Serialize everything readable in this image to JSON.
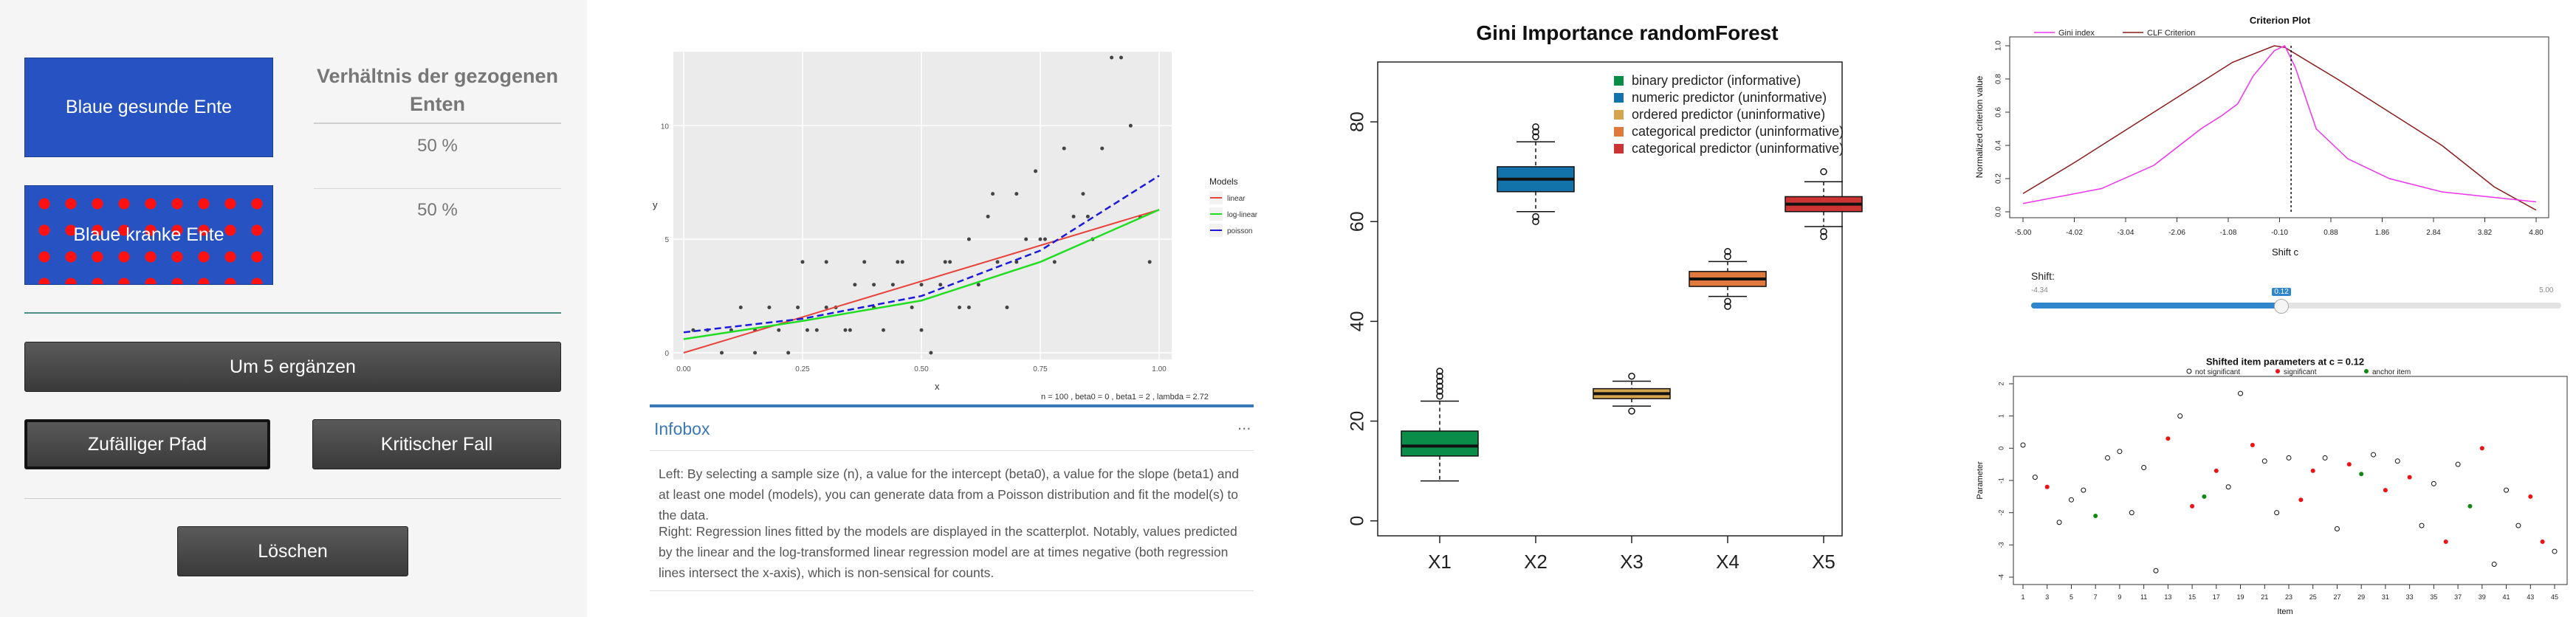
{
  "panel1": {
    "buttons": {
      "healthy": "Blaue gesunde Ente",
      "sick": "Blaue kranke Ente",
      "add5": "Um 5 ergänzen",
      "random_path": "Zufälliger Pfad",
      "critical_case": "Kritischer Fall",
      "delete": "Löschen"
    },
    "ratio_title": "Verhältnis der gezogenen Enten",
    "ratio_values": [
      "50 %",
      "50 %"
    ]
  },
  "panel2": {
    "chart_data": {
      "type": "scatter",
      "xlabel": "x",
      "ylabel": "y",
      "xlim": [
        0,
        1
      ],
      "ylim": [
        0,
        13
      ],
      "x_ticks": [
        "0.00",
        "0.25",
        "0.50",
        "0.75",
        "1.00"
      ],
      "y_ticks": [
        "0",
        "5",
        "10"
      ],
      "legend_title": "Models",
      "legend": [
        {
          "name": "linear",
          "color": "#e8423a"
        },
        {
          "name": "log-linear",
          "color": "#22dd22"
        },
        {
          "name": "poisson",
          "color": "#1a1adb"
        }
      ],
      "points": [
        [
          0.02,
          1
        ],
        [
          0.05,
          1
        ],
        [
          0.08,
          0
        ],
        [
          0.1,
          1
        ],
        [
          0.12,
          2
        ],
        [
          0.15,
          0
        ],
        [
          0.18,
          2
        ],
        [
          0.2,
          1
        ],
        [
          0.22,
          0
        ],
        [
          0.24,
          2
        ],
        [
          0.26,
          1
        ],
        [
          0.28,
          1
        ],
        [
          0.3,
          4
        ],
        [
          0.32,
          2
        ],
        [
          0.34,
          1
        ],
        [
          0.36,
          3
        ],
        [
          0.38,
          4
        ],
        [
          0.4,
          2
        ],
        [
          0.42,
          1
        ],
        [
          0.44,
          3
        ],
        [
          0.46,
          4
        ],
        [
          0.48,
          2
        ],
        [
          0.5,
          1
        ],
        [
          0.52,
          0
        ],
        [
          0.54,
          3
        ],
        [
          0.56,
          4
        ],
        [
          0.58,
          2
        ],
        [
          0.6,
          5
        ],
        [
          0.62,
          3
        ],
        [
          0.64,
          6
        ],
        [
          0.66,
          4
        ],
        [
          0.68,
          2
        ],
        [
          0.7,
          7
        ],
        [
          0.72,
          5
        ],
        [
          0.74,
          8
        ],
        [
          0.76,
          5
        ],
        [
          0.78,
          4
        ],
        [
          0.8,
          9
        ],
        [
          0.82,
          6
        ],
        [
          0.84,
          7
        ],
        [
          0.86,
          5
        ],
        [
          0.88,
          9
        ],
        [
          0.9,
          13
        ],
        [
          0.92,
          13
        ],
        [
          0.94,
          10
        ],
        [
          0.96,
          6
        ],
        [
          0.98,
          4
        ],
        [
          0.45,
          4
        ],
        [
          0.35,
          1
        ],
        [
          0.65,
          7
        ],
        [
          0.55,
          4
        ],
        [
          0.25,
          4
        ],
        [
          0.15,
          1
        ],
        [
          0.75,
          5
        ],
        [
          0.85,
          6
        ],
        [
          0.6,
          2
        ],
        [
          0.7,
          4
        ],
        [
          0.5,
          3
        ],
        [
          0.4,
          3
        ],
        [
          0.3,
          2
        ]
      ],
      "lines": {
        "linear": [
          [
            0,
            0
          ],
          [
            1,
            6.3
          ]
        ],
        "loglinear": [
          [
            0,
            0.6
          ],
          [
            0.25,
            1.4
          ],
          [
            0.5,
            2.3
          ],
          [
            0.75,
            4.0
          ],
          [
            1,
            6.3
          ]
        ],
        "poisson": [
          [
            0,
            0.9
          ],
          [
            0.25,
            1.5
          ],
          [
            0.5,
            2.5
          ],
          [
            0.75,
            4.5
          ],
          [
            1,
            7.8
          ]
        ]
      }
    },
    "caption": "n = 100 , beta0 = 0 , beta1 = 2 , lambda = 2.72",
    "infobox_title": "Infobox",
    "infobox_menu": "...",
    "info_left": "Left: By selecting a sample size (n), a value for the intercept (beta0), a value for the slope (beta1) and at least one model (models), you can generate data from a Poisson distribution and fit the model(s) to the data.",
    "info_right": "Right: Regression lines fitted by the models are displayed in the scatterplot. Notably, values predicted by the linear and the log-transformed linear regression model are at times negative (both regression lines intersect the x-axis), which is non-sensical for counts."
  },
  "panel3": {
    "chart_data": {
      "type": "box",
      "title": "Gini Importance randomForest",
      "categories": [
        "X1",
        "X2",
        "X3",
        "X4",
        "X5"
      ],
      "ylim": [
        -3,
        92
      ],
      "y_ticks": [
        0,
        20,
        40,
        60,
        80
      ],
      "series": [
        {
          "name": "binary predictor (informative)",
          "color": "#0b8d4a",
          "q1": 13,
          "median": 15,
          "q3": 18,
          "wlo": 8,
          "whi": 24,
          "outliers": [
            25,
            26,
            27,
            28,
            29,
            30
          ]
        },
        {
          "name": "numeric predictor (uninformative)",
          "color": "#1273aa",
          "q1": 66,
          "median": 68.5,
          "q3": 71,
          "wlo": 62,
          "whi": 76,
          "outliers": [
            60,
            61,
            77,
            78,
            79
          ]
        },
        {
          "name": "ordered predictor (uninformative)",
          "color": "#d4a44f",
          "q1": 24.5,
          "median": 25.5,
          "q3": 26.5,
          "wlo": 23,
          "whi": 28,
          "outliers": [
            22,
            29
          ]
        },
        {
          "name": "categorical predictor (uninformative)",
          "color": "#e07a3c",
          "q1": 47,
          "median": 48.5,
          "q3": 50,
          "wlo": 45,
          "whi": 52,
          "outliers": [
            43,
            44,
            53,
            54
          ]
        },
        {
          "name": "categorical predictor (uninformative)",
          "color": "#cc3333",
          "q1": 62,
          "median": 63.5,
          "q3": 65,
          "wlo": 59,
          "whi": 68,
          "outliers": [
            57,
            58,
            70
          ]
        }
      ]
    }
  },
  "panel4": {
    "criterion": {
      "title": "Criterion Plot",
      "xlabel": "Shift c",
      "ylabel": "Normalized criterion value",
      "legend": [
        {
          "name": "Gini index",
          "color": "#ee33ee"
        },
        {
          "name": "CLF Criterion",
          "color": "#8b1c1c"
        }
      ],
      "x_ticks": [
        "-5.00",
        "-4.02",
        "-3.04",
        "-2.06",
        "-1.08",
        "-0.10",
        "0.88",
        "1.86",
        "2.84",
        "3.82",
        "4.80"
      ],
      "y_ticks": [
        "0.0",
        "0.2",
        "0.4",
        "0.6",
        "0.8",
        "1.0"
      ],
      "xlim": [
        -5,
        4.8
      ],
      "ylim": [
        0,
        1
      ],
      "gini": [
        [
          -5,
          0.05
        ],
        [
          -3.5,
          0.14
        ],
        [
          -2.5,
          0.28
        ],
        [
          -1.6,
          0.5
        ],
        [
          -1.2,
          0.58
        ],
        [
          -0.9,
          0.65
        ],
        [
          -0.6,
          0.82
        ],
        [
          -0.2,
          0.97
        ],
        [
          0,
          1.0
        ],
        [
          0.2,
          0.87
        ],
        [
          0.6,
          0.5
        ],
        [
          1.2,
          0.32
        ],
        [
          2.0,
          0.2
        ],
        [
          3.0,
          0.12
        ],
        [
          4.8,
          0.06
        ]
      ],
      "clf": [
        [
          -5,
          0.11
        ],
        [
          -4,
          0.3
        ],
        [
          -3,
          0.5
        ],
        [
          -2,
          0.7
        ],
        [
          -1,
          0.9
        ],
        [
          -0.2,
          1.0
        ],
        [
          0,
          0.99
        ],
        [
          1,
          0.8
        ],
        [
          2,
          0.6
        ],
        [
          3,
          0.4
        ],
        [
          4,
          0.15
        ],
        [
          4.8,
          0.01
        ]
      ],
      "vline": 0.12
    },
    "slider": {
      "label": "Shift:",
      "min": "-4.34",
      "max": "5.00",
      "value": "0.12",
      "fraction": 0.4712
    },
    "items": {
      "title": "Shifted item parameters at c = 0.12",
      "xlabel": "Item",
      "ylabel": "Parameter",
      "legend": [
        {
          "name": "not significant",
          "color": "#000000"
        },
        {
          "name": "significant",
          "color": "#ee1111"
        },
        {
          "name": "anchor item",
          "color": "#118811"
        }
      ],
      "x_ticks": [
        "1",
        "3",
        "5",
        "7",
        "9",
        "11",
        "13",
        "15",
        "17",
        "19",
        "21",
        "23",
        "25",
        "27",
        "29",
        "31",
        "33",
        "35",
        "37",
        "39",
        "41",
        "43",
        "45"
      ],
      "y_ticks": [
        "2",
        "1",
        "0",
        "-1",
        "-2",
        "-3",
        "-4"
      ],
      "ylim": [
        -4,
        2
      ],
      "points": [
        [
          1,
          0.1,
          "n"
        ],
        [
          2,
          -0.9,
          "n"
        ],
        [
          3,
          -1.2,
          "s"
        ],
        [
          4,
          -2.3,
          "n"
        ],
        [
          5,
          -1.6,
          "n"
        ],
        [
          6,
          -1.3,
          "n"
        ],
        [
          7,
          -2.1,
          "a"
        ],
        [
          8,
          -0.3,
          "n"
        ],
        [
          9,
          -0.1,
          "n"
        ],
        [
          10,
          -2.0,
          "n"
        ],
        [
          11,
          -0.6,
          "n"
        ],
        [
          12,
          -3.8,
          "n"
        ],
        [
          13,
          0.3,
          "s"
        ],
        [
          14,
          1.0,
          "n"
        ],
        [
          15,
          -1.8,
          "s"
        ],
        [
          16,
          -1.5,
          "a"
        ],
        [
          17,
          -0.7,
          "s"
        ],
        [
          18,
          -1.2,
          "n"
        ],
        [
          19,
          1.7,
          "n"
        ],
        [
          20,
          0.1,
          "s"
        ],
        [
          21,
          -0.4,
          "n"
        ],
        [
          22,
          -2.0,
          "n"
        ],
        [
          23,
          -0.3,
          "n"
        ],
        [
          24,
          -1.6,
          "s"
        ],
        [
          25,
          -0.7,
          "s"
        ],
        [
          26,
          -0.3,
          "n"
        ],
        [
          27,
          -2.5,
          "n"
        ],
        [
          28,
          -0.5,
          "s"
        ],
        [
          29,
          -0.8,
          "a"
        ],
        [
          30,
          -0.2,
          "n"
        ],
        [
          31,
          -1.3,
          "s"
        ],
        [
          32,
          -0.4,
          "n"
        ],
        [
          33,
          -0.9,
          "s"
        ],
        [
          34,
          -2.4,
          "n"
        ],
        [
          35,
          -1.1,
          "n"
        ],
        [
          36,
          -2.9,
          "s"
        ],
        [
          37,
          -0.5,
          "n"
        ],
        [
          38,
          -1.8,
          "a"
        ],
        [
          39,
          0.0,
          "s"
        ],
        [
          40,
          -3.6,
          "n"
        ],
        [
          41,
          -1.3,
          "n"
        ],
        [
          42,
          -2.4,
          "n"
        ],
        [
          43,
          -1.5,
          "s"
        ],
        [
          44,
          -2.9,
          "s"
        ],
        [
          45,
          -3.2,
          "n"
        ]
      ]
    }
  }
}
